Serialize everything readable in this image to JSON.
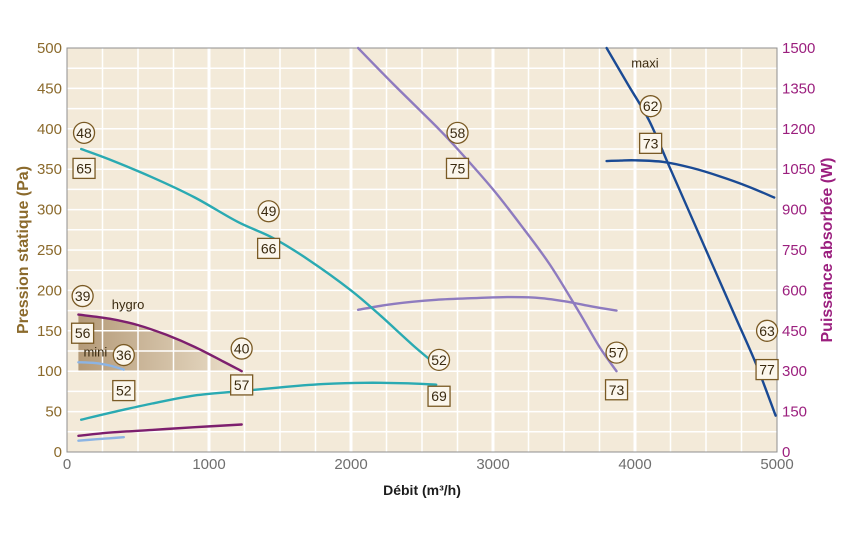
{
  "chart_data": {
    "type": "line",
    "xlabel": "Débit (m³/h)",
    "ylabel_left": "Pression statique (Pa)",
    "ylabel_right": "Puissance absorbée (W)",
    "xlim": [
      0,
      5000
    ],
    "ylim_left": [
      0,
      500
    ],
    "ylim_right": [
      0,
      1500
    ],
    "x_ticks": [
      "0",
      "1000",
      "2000",
      "3000",
      "4000",
      "5000"
    ],
    "y_left_ticks": [
      "0",
      "50",
      "100",
      "150",
      "200",
      "250",
      "300",
      "350",
      "400",
      "450",
      "500"
    ],
    "y_right_ticks": [
      "0",
      "150",
      "300",
      "450",
      "600",
      "750",
      "900",
      "1050",
      "1200",
      "1350",
      "1500"
    ],
    "grid": true,
    "colors": {
      "plot_bg": "#f3ead9",
      "grid": "#ffffff",
      "frame": "#8f8f8f",
      "left_axis": "#8b6a2c",
      "right_axis": "#9b1f7e",
      "shade_dark": "#b49a78",
      "shade_light": "#ece0cb",
      "label_stroke": "#7a5a24"
    },
    "series": [
      {
        "name": "maxi",
        "axis": "left",
        "color": "#1a4a94",
        "points": [
          [
            3800,
            500
          ],
          [
            3950,
            455
          ],
          [
            4100,
            410
          ],
          [
            4250,
            350
          ],
          [
            4400,
            290
          ],
          [
            4550,
            230
          ],
          [
            4700,
            170
          ],
          [
            4850,
            110
          ],
          [
            4990,
            45
          ]
        ]
      },
      {
        "axis": "right",
        "color": "#1a4a94",
        "points": [
          [
            3800,
            1080
          ],
          [
            3900,
            1082
          ],
          [
            4000,
            1083
          ],
          [
            4200,
            1077
          ],
          [
            4400,
            1055
          ],
          [
            4600,
            1023
          ],
          [
            4800,
            985
          ],
          [
            4980,
            945
          ]
        ]
      },
      {
        "axis": "left",
        "color": "#8e7bbf",
        "points": [
          [
            2050,
            500
          ],
          [
            2300,
            455
          ],
          [
            2600,
            403
          ],
          [
            2750,
            375
          ],
          [
            3000,
            325
          ],
          [
            3200,
            280
          ],
          [
            3400,
            232
          ],
          [
            3600,
            175
          ],
          [
            3750,
            130
          ],
          [
            3870,
            100
          ]
        ]
      },
      {
        "axis": "right",
        "color": "#8e7bbf",
        "points": [
          [
            2050,
            528
          ],
          [
            2300,
            550
          ],
          [
            2600,
            565
          ],
          [
            2900,
            572
          ],
          [
            3100,
            575
          ],
          [
            3300,
            573
          ],
          [
            3500,
            560
          ],
          [
            3700,
            540
          ],
          [
            3870,
            525
          ]
        ]
      },
      {
        "axis": "left",
        "color": "#2aaab2",
        "points": [
          [
            100,
            375
          ],
          [
            300,
            362
          ],
          [
            600,
            340
          ],
          [
            900,
            315
          ],
          [
            1200,
            285
          ],
          [
            1450,
            265
          ],
          [
            1700,
            238
          ],
          [
            2000,
            200
          ],
          [
            2200,
            170
          ],
          [
            2450,
            130
          ],
          [
            2600,
            108
          ]
        ]
      },
      {
        "axis": "right",
        "color": "#2aaab2",
        "points": [
          [
            100,
            120
          ],
          [
            300,
            145
          ],
          [
            600,
            180
          ],
          [
            900,
            210
          ],
          [
            1200,
            225
          ],
          [
            1500,
            240
          ],
          [
            1800,
            252
          ],
          [
            2100,
            257
          ],
          [
            2400,
            255
          ],
          [
            2600,
            250
          ]
        ]
      },
      {
        "name": "hygro",
        "axis": "left",
        "color": "#7d1f6e",
        "points": [
          [
            80,
            170
          ],
          [
            300,
            165
          ],
          [
            500,
            157
          ],
          [
            700,
            145
          ],
          [
            900,
            130
          ],
          [
            1100,
            112
          ],
          [
            1230,
            100
          ]
        ]
      },
      {
        "axis": "right",
        "color": "#7d1f6e",
        "points": [
          [
            80,
            60
          ],
          [
            300,
            72
          ],
          [
            600,
            82
          ],
          [
            900,
            92
          ],
          [
            1230,
            102
          ]
        ]
      },
      {
        "name": "mini",
        "axis": "left",
        "color": "#8cb4e4",
        "points": [
          [
            80,
            111
          ],
          [
            200,
            110
          ],
          [
            300,
            107
          ],
          [
            400,
            102
          ]
        ]
      },
      {
        "axis": "right",
        "color": "#8cb4e4",
        "points": [
          [
            80,
            42
          ],
          [
            200,
            47
          ],
          [
            300,
            51
          ],
          [
            400,
            55
          ]
        ]
      }
    ],
    "shaded_region": {
      "axis": "left",
      "top_boundary": [
        [
          80,
          170
        ],
        [
          300,
          165
        ],
        [
          500,
          157
        ],
        [
          700,
          145
        ],
        [
          900,
          130
        ],
        [
          1100,
          112
        ],
        [
          1230,
          100
        ]
      ],
      "baseline": 100
    },
    "markers": [
      {
        "shape": "circle",
        "text": "48",
        "x": 120,
        "y": 395
      },
      {
        "shape": "square",
        "text": "65",
        "x": 120,
        "y": 351
      },
      {
        "shape": "circle",
        "text": "49",
        "x": 1420,
        "y": 298
      },
      {
        "shape": "square",
        "text": "66",
        "x": 1420,
        "y": 252
      },
      {
        "shape": "circle",
        "text": "58",
        "x": 2750,
        "y": 395
      },
      {
        "shape": "square",
        "text": "75",
        "x": 2750,
        "y": 351
      },
      {
        "shape": "circle",
        "text": "62",
        "x": 4110,
        "y": 428
      },
      {
        "shape": "square",
        "text": "73",
        "x": 4110,
        "y": 382
      },
      {
        "shape": "circle",
        "text": "39",
        "x": 110,
        "y": 193
      },
      {
        "shape": "square",
        "text": "56",
        "x": 110,
        "y": 147
      },
      {
        "shape": "circle",
        "text": "36",
        "x": 400,
        "y": 120
      },
      {
        "shape": "square",
        "text": "52",
        "x": 400,
        "y": 76
      },
      {
        "shape": "circle",
        "text": "40",
        "x": 1230,
        "y": 128
      },
      {
        "shape": "square",
        "text": "57",
        "x": 1230,
        "y": 83
      },
      {
        "shape": "circle",
        "text": "52",
        "x": 2620,
        "y": 114
      },
      {
        "shape": "square",
        "text": "69",
        "x": 2620,
        "y": 69
      },
      {
        "shape": "circle",
        "text": "57",
        "x": 3870,
        "y": 123
      },
      {
        "shape": "square",
        "text": "73",
        "x": 3870,
        "y": 77
      },
      {
        "shape": "circle",
        "text": "63",
        "x": 4930,
        "y": 150
      },
      {
        "shape": "square",
        "text": "77",
        "x": 4930,
        "y": 102
      }
    ],
    "series_labels": [
      {
        "text": "maxi",
        "x": 4070,
        "y": 476
      },
      {
        "text": "hygro",
        "x": 430,
        "y": 177
      },
      {
        "text": "mini",
        "x": 200,
        "y": 118
      }
    ]
  }
}
